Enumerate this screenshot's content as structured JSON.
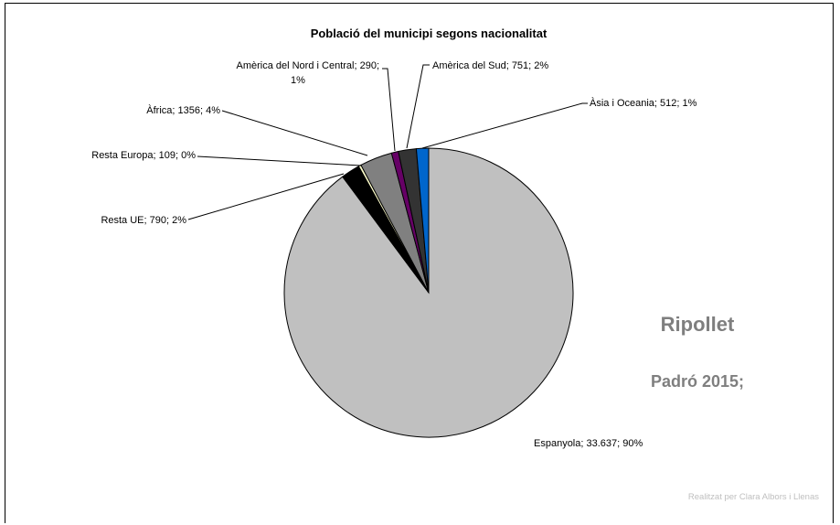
{
  "chart_data": {
    "type": "pie",
    "title": "Població del municipi segons nacionalitat",
    "slices": [
      {
        "name": "Espanyola",
        "label": "Espanyola; 33.637; 90%",
        "value": 33637,
        "color": "#c0c0c0"
      },
      {
        "name": "Resta UE",
        "label": "Resta UE; 790; 2%",
        "value": 790,
        "color": "#000000"
      },
      {
        "name": "Resta Europa",
        "label": "Resta Europa; 109; 0%",
        "value": 109,
        "color": "#ffffcc"
      },
      {
        "name": "Àfrica",
        "label": "Àfrica; 1356; 4%",
        "value": 1356,
        "color": "#808080"
      },
      {
        "name": "Amèrica del Nord i Central",
        "label_lines": [
          "Amèrica del Nord i Central; 290;",
          "1%"
        ],
        "value": 290,
        "color": "#660066"
      },
      {
        "name": "Amèrica del Sud",
        "label": "Amèrica del Sud; 751; 2%",
        "value": 751,
        "color": "#333333"
      },
      {
        "name": "Àsia i Oceania",
        "label": "Àsia i Oceania; 512; 1%",
        "value": 512,
        "color": "#0066cc"
      }
    ]
  },
  "side_text": {
    "line1": "Ripollet",
    "line2": "Padró 2015;"
  },
  "credit": "Realitzat per Clara Albors i Llenas"
}
